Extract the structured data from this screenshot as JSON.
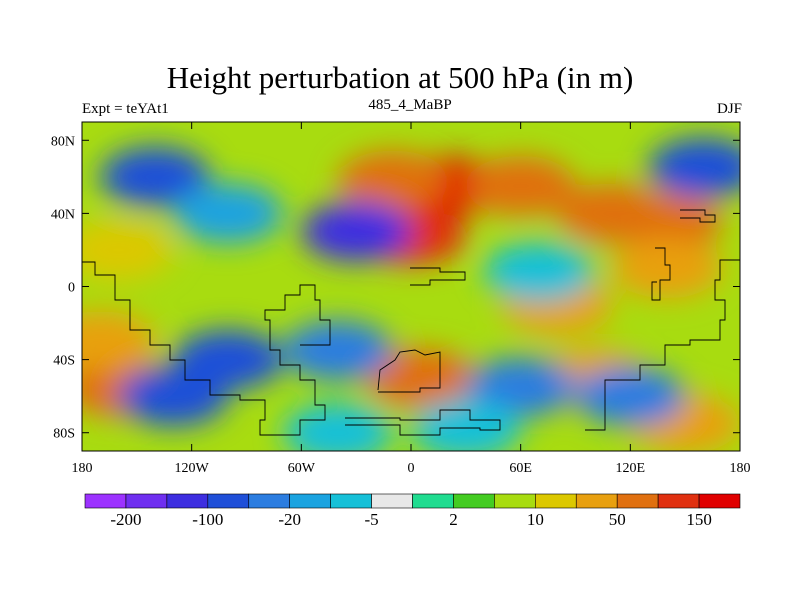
{
  "chart_data": {
    "type": "heatmap",
    "title": "Height perturbation at 500 hPa (in m)",
    "left_label": "Expt = teYAt1",
    "center_label": "485_4_MaBP",
    "right_label": "DJF",
    "x_ticks": [
      {
        "value": -180,
        "label": "180"
      },
      {
        "value": -120,
        "label": "120W"
      },
      {
        "value": -60,
        "label": "60W"
      },
      {
        "value": 0,
        "label": "0"
      },
      {
        "value": 60,
        "label": "60E"
      },
      {
        "value": 120,
        "label": "120E"
      },
      {
        "value": 180,
        "label": "180"
      }
    ],
    "y_ticks": [
      {
        "value": 80,
        "label": "80N"
      },
      {
        "value": 40,
        "label": "40N"
      },
      {
        "value": 0,
        "label": "0"
      },
      {
        "value": -40,
        "label": "40S"
      },
      {
        "value": -80,
        "label": "80S"
      }
    ],
    "xlim": [
      -180,
      180
    ],
    "ylim": [
      -90,
      90
    ],
    "colorbar": {
      "colors": [
        "#9c32ff",
        "#6f2ff0",
        "#3d2ee0",
        "#1f4fd8",
        "#2c7de0",
        "#1aa3e0",
        "#16c0d8",
        "#e8e8e8",
        "#20dc90",
        "#44cc22",
        "#a8dc10",
        "#dcc800",
        "#e8a010",
        "#e07010",
        "#e03010",
        "#e00000"
      ],
      "labels": [
        "-200",
        "-100",
        "-20",
        "-5",
        "2",
        "10",
        "50",
        "150"
      ]
    },
    "features": [
      {
        "lon": 0,
        "lat": 28,
        "value": 110
      },
      {
        "lon": 20,
        "lat": 55,
        "value": 160
      },
      {
        "lon": -10,
        "lat": 58,
        "value": 90
      },
      {
        "lon": 60,
        "lat": 55,
        "value": 60
      },
      {
        "lon": 110,
        "lat": 40,
        "value": 90
      },
      {
        "lon": 140,
        "lat": 35,
        "value": 60
      },
      {
        "lon": 140,
        "lat": 10,
        "value": 40
      },
      {
        "lon": -160,
        "lat": 20,
        "value": 15
      },
      {
        "lon": -160,
        "lat": -55,
        "value": 90
      },
      {
        "lon": -170,
        "lat": -30,
        "value": 20
      },
      {
        "lon": 5,
        "lat": -50,
        "value": 55
      },
      {
        "lon": 80,
        "lat": -10,
        "value": 30
      },
      {
        "lon": 100,
        "lat": -50,
        "value": 20
      },
      {
        "lon": 150,
        "lat": -75,
        "value": 30
      },
      {
        "lon": -140,
        "lat": 60,
        "value": -100
      },
      {
        "lon": 160,
        "lat": 65,
        "value": -100
      },
      {
        "lon": -30,
        "lat": 30,
        "value": -120
      },
      {
        "lon": -100,
        "lat": 40,
        "value": -15
      },
      {
        "lon": -100,
        "lat": -40,
        "value": -80
      },
      {
        "lon": -130,
        "lat": -60,
        "value": -60
      },
      {
        "lon": -40,
        "lat": -35,
        "value": -30
      },
      {
        "lon": 70,
        "lat": 8,
        "value": -8
      },
      {
        "lon": 60,
        "lat": -55,
        "value": -25
      },
      {
        "lon": 120,
        "lat": -60,
        "value": -40
      },
      {
        "lon": -40,
        "lat": -80,
        "value": -10
      },
      {
        "lon": 30,
        "lat": -78,
        "value": -8
      }
    ]
  }
}
